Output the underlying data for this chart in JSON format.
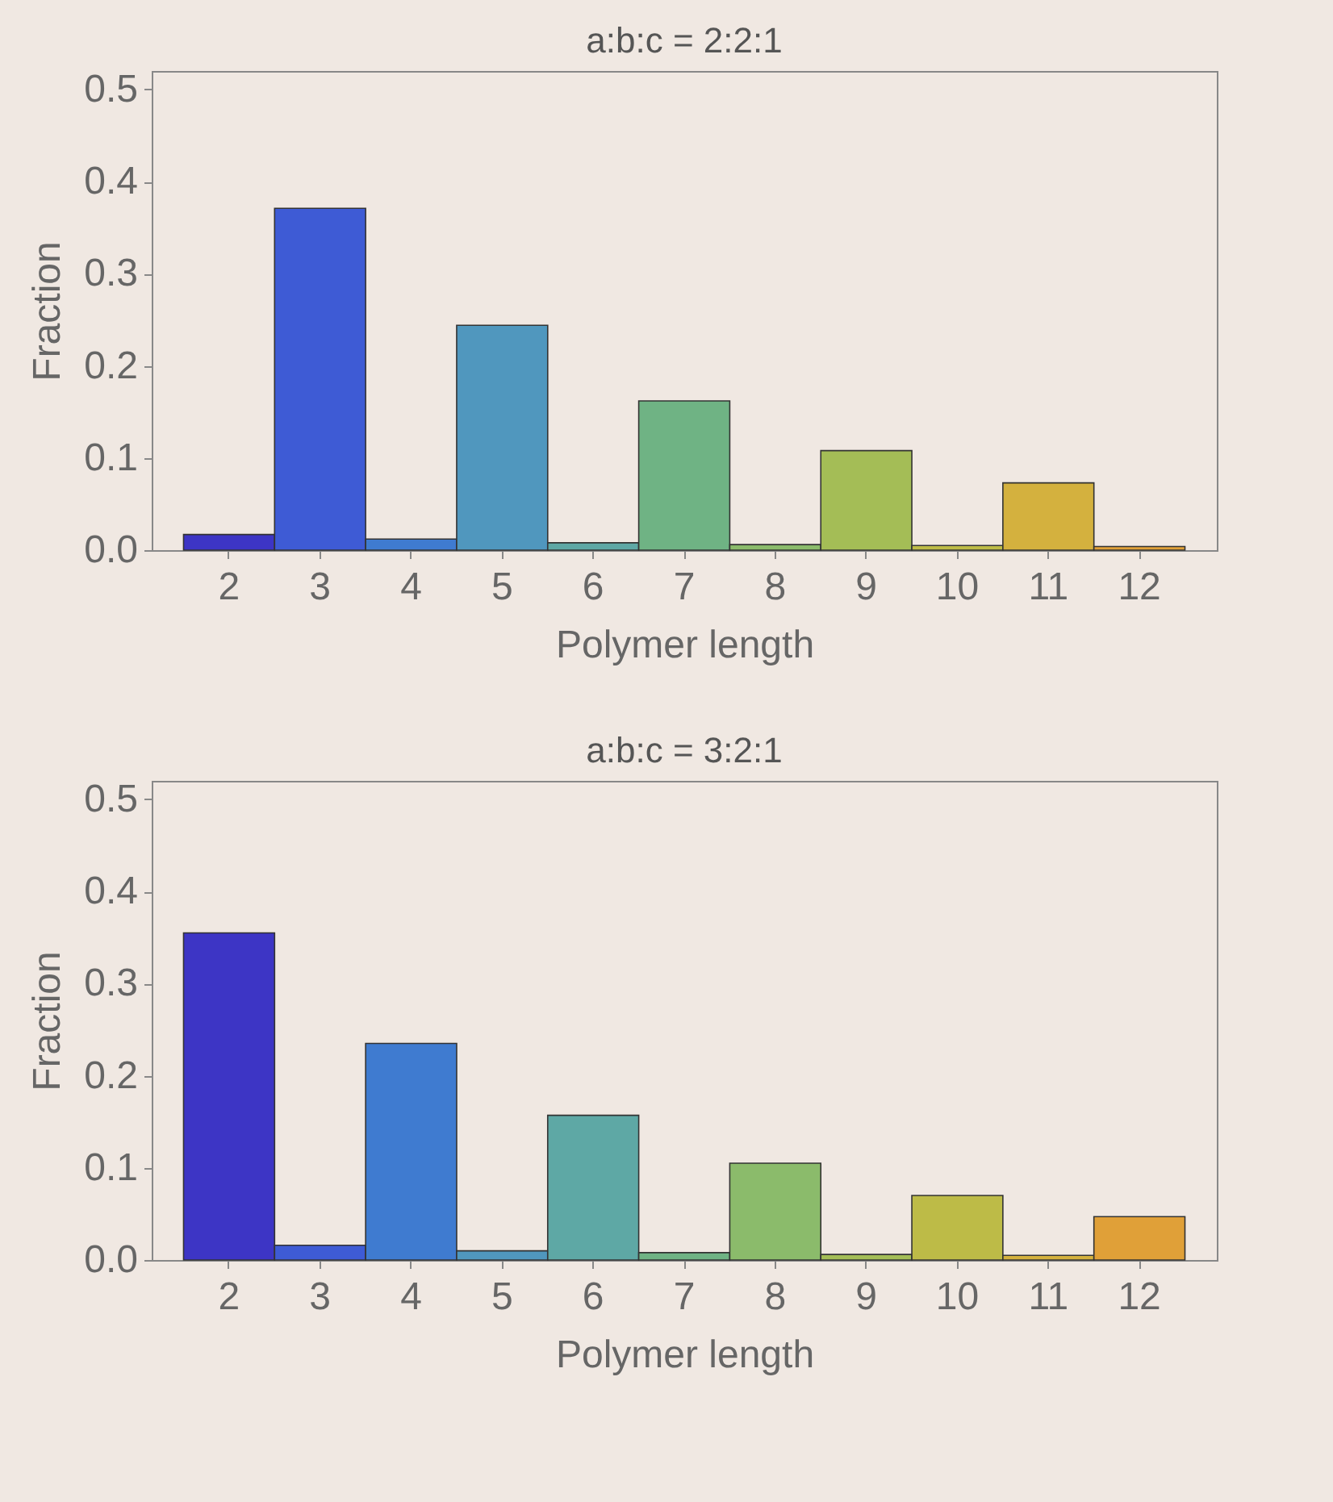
{
  "chart_data": [
    {
      "type": "bar",
      "title": "a:b:c = 2:2:1",
      "xlabel": "Polymer length",
      "ylabel": "Fraction",
      "categories": [
        "2",
        "3",
        "4",
        "5",
        "6",
        "7",
        "8",
        "9",
        "10",
        "11",
        "12"
      ],
      "values": [
        0.017,
        0.371,
        0.012,
        0.244,
        0.008,
        0.162,
        0.006,
        0.108,
        0.005,
        0.073,
        0.004
      ],
      "colors": [
        "#3d35c5",
        "#3e5bd5",
        "#3f7bd0",
        "#5097be",
        "#5ea8a5",
        "#6fb384",
        "#8bbb6b",
        "#a4bd56",
        "#bdbb47",
        "#d4b13e",
        "#e0a038"
      ],
      "ylim": [
        0,
        0.52
      ],
      "yticks": [
        {
          "value": 0,
          "label": "0.0"
        },
        0.1,
        0.2,
        0.3,
        0.4,
        0.5
      ],
      "grid": false,
      "legend": false
    },
    {
      "type": "bar",
      "title": "a:b:c = 3:2:1",
      "xlabel": "Polymer length",
      "ylabel": "Fraction",
      "categories": [
        "2",
        "3",
        "4",
        "5",
        "6",
        "7",
        "8",
        "9",
        "10",
        "11",
        "12"
      ],
      "values": [
        0.355,
        0.016,
        0.235,
        0.01,
        0.157,
        0.008,
        0.105,
        0.006,
        0.07,
        0.005,
        0.047
      ],
      "colors": [
        "#3f33c3",
        "#3f55d0",
        "#427dd0",
        "#4f9ac0",
        "#5fa8a0",
        "#72b57f",
        "#8bbb6a",
        "#a5bd55",
        "#bfbc48",
        "#d6ae3e",
        "#e2a036"
      ],
      "ylim": [
        0,
        0.52
      ],
      "yticks": [
        {
          "value": 0,
          "label": "0.0"
        },
        0.1,
        0.2,
        0.3,
        0.4,
        0.5
      ],
      "grid": false,
      "legend": false
    }
  ]
}
